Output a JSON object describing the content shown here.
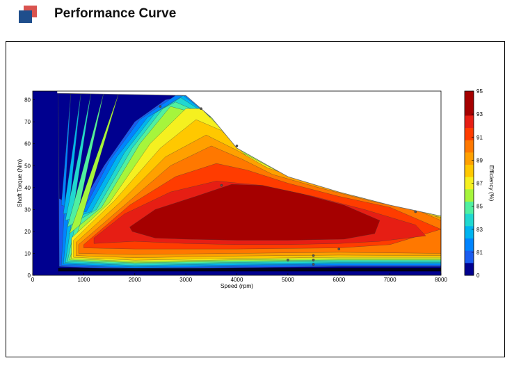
{
  "header": {
    "title": "Performance Curve"
  },
  "colors": {
    "brand_red": "#d9534f",
    "brand_blue": "#1f4e8c"
  },
  "chart_data": {
    "type": "contour",
    "xlabel": "Speed  (rpm)",
    "ylabel": "Shaft Torque  (Nm)",
    "colorbar_label": "Efficiency (%)",
    "xlim": [
      0,
      8000
    ],
    "ylim": [
      0,
      84
    ],
    "x_ticks": [
      "0",
      "1000",
      "2000",
      "3000",
      "4000",
      "5000",
      "6000",
      "7000",
      "8000"
    ],
    "y_ticks": [
      "0",
      "10",
      "20",
      "30",
      "40",
      "50",
      "60",
      "70",
      "80"
    ],
    "colorbar_ticks": [
      "95",
      "93",
      "91",
      "89",
      "87",
      "85",
      "83",
      "81",
      "0"
    ],
    "torque_limit": [
      [
        0,
        84
      ],
      [
        500,
        83
      ],
      [
        3000,
        82
      ],
      [
        3500,
        72
      ],
      [
        4000,
        58
      ],
      [
        5000,
        45
      ],
      [
        6000,
        38
      ],
      [
        7000,
        32
      ],
      [
        8000,
        27
      ]
    ],
    "levels": [
      {
        "eff": 83,
        "color": "#1a5cf0",
        "ylo": 0.6,
        "poly": [
          [
            500,
            84
          ],
          [
            520,
            35
          ],
          [
            900,
            30
          ],
          [
            1400,
            50
          ],
          [
            2000,
            70
          ],
          [
            2600,
            80
          ],
          [
            3000,
            82
          ],
          [
            3500,
            72
          ],
          [
            4000,
            58
          ],
          [
            5000,
            45
          ],
          [
            6000,
            38
          ],
          [
            7000,
            32
          ],
          [
            8000,
            27
          ],
          [
            8000,
            4
          ],
          [
            6000,
            4
          ],
          [
            4000,
            3.5
          ],
          [
            2000,
            2.7
          ],
          [
            520,
            4
          ]
        ]
      },
      {
        "eff": 84,
        "color": "#0084ff",
        "ylo": 0.8,
        "poly": [
          [
            750,
            84
          ],
          [
            560,
            32
          ],
          [
            980,
            29
          ],
          [
            1500,
            52
          ],
          [
            2100,
            71
          ],
          [
            2800,
            82
          ],
          [
            3000,
            82
          ],
          [
            3500,
            72
          ],
          [
            4000,
            58
          ],
          [
            5000,
            45
          ],
          [
            6000,
            38
          ],
          [
            7000,
            32
          ],
          [
            8000,
            27
          ],
          [
            8000,
            4.6
          ],
          [
            6000,
            4.6
          ],
          [
            4000,
            4.1
          ],
          [
            2000,
            3.3
          ],
          [
            560,
            4.6
          ]
        ]
      },
      {
        "eff": 85,
        "color": "#00b4f0",
        "ylo": 1.0,
        "poly": [
          [
            950,
            84
          ],
          [
            600,
            28
          ],
          [
            1050,
            29
          ],
          [
            1650,
            54
          ],
          [
            2250,
            72
          ],
          [
            2950,
            82
          ],
          [
            3500,
            72
          ],
          [
            4000,
            58
          ],
          [
            5000,
            45
          ],
          [
            6000,
            38
          ],
          [
            7000,
            32
          ],
          [
            8000,
            27
          ],
          [
            8000,
            5.2
          ],
          [
            6000,
            5.2
          ],
          [
            4000,
            4.7
          ],
          [
            2000,
            3.9
          ],
          [
            600,
            5.2
          ]
        ]
      },
      {
        "eff": 86,
        "color": "#20d8d0",
        "ylo": 1.2,
        "poly": [
          [
            1150,
            84
          ],
          [
            640,
            25
          ],
          [
            1150,
            29
          ],
          [
            1800,
            56
          ],
          [
            2400,
            74
          ],
          [
            2900,
            81
          ],
          [
            3500,
            72
          ],
          [
            4000,
            58
          ],
          [
            5000,
            45
          ],
          [
            6000,
            38
          ],
          [
            7000,
            32
          ],
          [
            8000,
            27
          ],
          [
            8000,
            5.8
          ],
          [
            6000,
            5.8
          ],
          [
            4000,
            5.3
          ],
          [
            2000,
            4.5
          ],
          [
            640,
            5.8
          ]
        ]
      },
      {
        "eff": 87,
        "color": "#50f0a0",
        "ylo": 1.4,
        "poly": [
          [
            1400,
            84
          ],
          [
            680,
            22
          ],
          [
            1250,
            30
          ],
          [
            1950,
            58
          ],
          [
            2550,
            76
          ],
          [
            2800,
            79
          ],
          [
            3500,
            72
          ],
          [
            4000,
            58
          ],
          [
            5000,
            45
          ],
          [
            6000,
            38
          ],
          [
            7000,
            32
          ],
          [
            8000,
            27
          ],
          [
            8000,
            6.4
          ],
          [
            6000,
            6.4
          ],
          [
            4000,
            5.9
          ],
          [
            2000,
            5.1
          ],
          [
            680,
            6.4
          ]
        ]
      },
      {
        "eff": 88,
        "color": "#a6f53c",
        "ylo": 1.6,
        "poly": [
          [
            1700,
            84
          ],
          [
            720,
            19
          ],
          [
            1350,
            31
          ],
          [
            2100,
            60
          ],
          [
            2700,
            77
          ],
          [
            3500,
            72
          ],
          [
            4000,
            58
          ],
          [
            5000,
            45
          ],
          [
            6000,
            38
          ],
          [
            7000,
            32
          ],
          [
            8000,
            27
          ],
          [
            8000,
            7
          ],
          [
            6000,
            7
          ],
          [
            4000,
            6.5
          ],
          [
            2000,
            5.7
          ],
          [
            720,
            7
          ]
        ]
      },
      {
        "eff": 89,
        "color": "#f5f020",
        "ylo": 1.8,
        "poly": [
          [
            760,
            17
          ],
          [
            1500,
            33
          ],
          [
            2300,
            60
          ],
          [
            3000,
            76
          ],
          [
            3300,
            76
          ],
          [
            3600,
            69
          ],
          [
            4100,
            56
          ],
          [
            5000,
            45
          ],
          [
            6000,
            38
          ],
          [
            7000,
            32
          ],
          [
            8000,
            27
          ],
          [
            8000,
            7.6
          ],
          [
            6000,
            7.6
          ],
          [
            4000,
            7.1
          ],
          [
            2000,
            6.3
          ],
          [
            760,
            7.6
          ]
        ]
      },
      {
        "eff": 90,
        "color": "#ffc800",
        "ylo": 2.0,
        "poly": [
          [
            800,
            16
          ],
          [
            1600,
            34
          ],
          [
            2500,
            58
          ],
          [
            3200,
            71
          ],
          [
            3700,
            66
          ],
          [
            4200,
            54
          ],
          [
            5000,
            44
          ],
          [
            6000,
            37
          ],
          [
            7000,
            31
          ],
          [
            8000,
            26.5
          ],
          [
            8000,
            8.2
          ],
          [
            6000,
            8.2
          ],
          [
            4000,
            7.7
          ],
          [
            2000,
            6.9
          ],
          [
            800,
            8.2
          ]
        ]
      },
      {
        "eff": 91,
        "color": "#ffa000",
        "ylo": 2.2,
        "poly": [
          [
            850,
            15
          ],
          [
            1700,
            33
          ],
          [
            2600,
            54
          ],
          [
            3400,
            64
          ],
          [
            4000,
            57
          ],
          [
            4600,
            49
          ],
          [
            5500,
            42
          ],
          [
            6500,
            35
          ],
          [
            7500,
            30
          ],
          [
            8000,
            26
          ],
          [
            8000,
            9
          ],
          [
            6000,
            9.2
          ],
          [
            4000,
            8.8
          ],
          [
            2000,
            8
          ],
          [
            850,
            9
          ]
        ]
      },
      {
        "eff": 92,
        "color": "#ff7800",
        "ylo": 2.4,
        "poly": [
          [
            900,
            14
          ],
          [
            1800,
            32
          ],
          [
            2700,
            50
          ],
          [
            3500,
            59
          ],
          [
            4100,
            53
          ],
          [
            4700,
            46
          ],
          [
            5600,
            40
          ],
          [
            6600,
            34
          ],
          [
            7600,
            29
          ],
          [
            8000,
            25
          ],
          [
            8000,
            10
          ],
          [
            6000,
            10.5
          ],
          [
            4000,
            10
          ],
          [
            2000,
            9.5
          ],
          [
            900,
            10
          ]
        ]
      },
      {
        "eff": 93,
        "color": "#ff3c00",
        "ylo": 2.6,
        "poly": [
          [
            1000,
            14
          ],
          [
            1900,
            32
          ],
          [
            2800,
            45
          ],
          [
            3600,
            51
          ],
          [
            4200,
            48
          ],
          [
            5000,
            42
          ],
          [
            6000,
            36
          ],
          [
            7000,
            31
          ],
          [
            8000,
            21
          ],
          [
            7000,
            14
          ],
          [
            6000,
            12.5
          ],
          [
            4000,
            12
          ],
          [
            2000,
            12
          ],
          [
            1000,
            12.5
          ]
        ]
      },
      {
        "eff": 94,
        "color": "#e61e14",
        "ylo": 2.8,
        "poly": [
          [
            1200,
            17
          ],
          [
            1800,
            28
          ],
          [
            2700,
            38
          ],
          [
            3600,
            43
          ],
          [
            4500,
            41
          ],
          [
            5500,
            36
          ],
          [
            6500,
            30
          ],
          [
            7500,
            23
          ],
          [
            7700,
            18
          ],
          [
            6800,
            15.5
          ],
          [
            6000,
            14.5
          ],
          [
            5000,
            14
          ],
          [
            4000,
            14
          ],
          [
            3000,
            14.5
          ],
          [
            2000,
            15.5
          ],
          [
            1200,
            14.5
          ]
        ]
      },
      {
        "eff": 95,
        "color": "#a50000",
        "ylo": 3.0,
        "poly": [
          [
            1900,
            22
          ],
          [
            2400,
            30
          ],
          [
            3200,
            36
          ],
          [
            3900,
            41.5
          ],
          [
            4500,
            41
          ],
          [
            5300,
            37
          ],
          [
            6100,
            32
          ],
          [
            6800,
            25
          ],
          [
            6700,
            19
          ],
          [
            6100,
            16.5
          ],
          [
            5000,
            16
          ],
          [
            4000,
            16
          ],
          [
            3000,
            16.5
          ],
          [
            2400,
            17
          ],
          [
            1950,
            20
          ]
        ]
      }
    ],
    "markers": [
      [
        2500,
        77
      ],
      [
        3300,
        76
      ],
      [
        4000,
        59
      ],
      [
        3700,
        41
      ],
      [
        5000,
        7
      ],
      [
        5500,
        9
      ],
      [
        5500,
        7
      ],
      [
        5500,
        5
      ],
      [
        6000,
        12
      ],
      [
        7500,
        29
      ]
    ]
  }
}
